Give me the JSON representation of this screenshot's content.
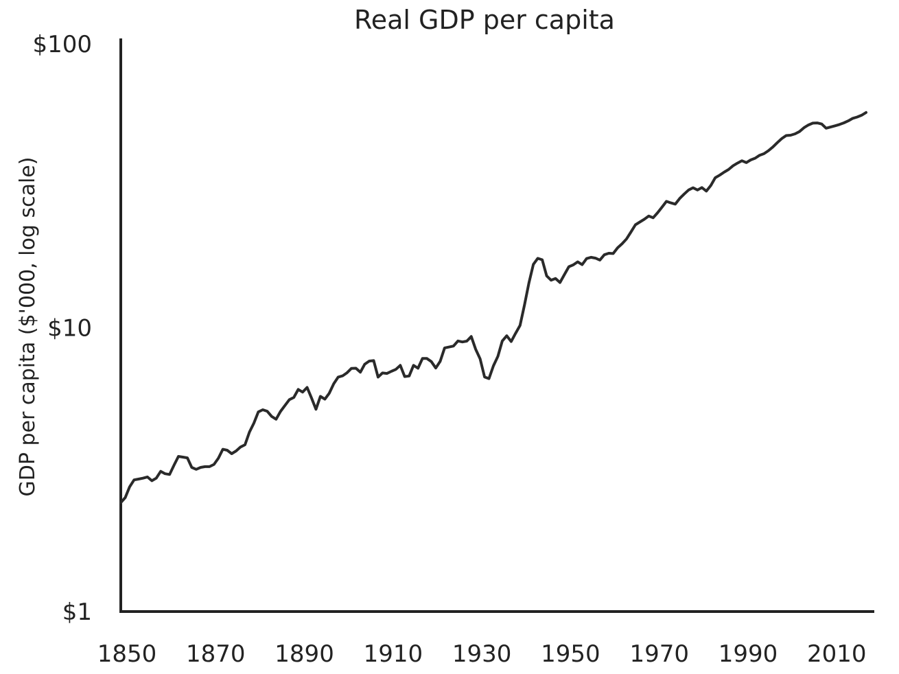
{
  "chart_data": {
    "type": "line",
    "title": "Real GDP per capita",
    "xlabel": "",
    "ylabel": "GDP per capita ($'000, log scale)",
    "y_scale": "log",
    "ylim": [
      1,
      100
    ],
    "xlim": [
      1850,
      2018
    ],
    "x_ticks": [
      "1850",
      "1870",
      "1890",
      "1910",
      "1930",
      "1950",
      "1970",
      "2010"
    ],
    "x_ticks_all": [
      "1850",
      "1870",
      "1890",
      "1910",
      "1930",
      "1950",
      "1970",
      "1990",
      "2010"
    ],
    "y_ticks": [
      "$1",
      "$10",
      "$100"
    ],
    "grid": false,
    "legend": "none",
    "line_color": "#2a2a2a",
    "series": [
      {
        "x": [
          1850,
          1851,
          1852,
          1853,
          1854,
          1855,
          1856,
          1857,
          1858,
          1859,
          1860,
          1861,
          1862,
          1863,
          1864,
          1865,
          1866,
          1867,
          1868,
          1869,
          1870,
          1871,
          1872,
          1873,
          1874,
          1875,
          1876,
          1877,
          1878,
          1879,
          1880,
          1881,
          1882,
          1883,
          1884,
          1885,
          1886,
          1887,
          1888,
          1889,
          1890,
          1891,
          1892,
          1893,
          1894,
          1895,
          1896,
          1897,
          1898,
          1899,
          1900,
          1901,
          1902,
          1903,
          1904,
          1905,
          1906,
          1907,
          1908,
          1909,
          1910,
          1911,
          1912,
          1913,
          1914,
          1915,
          1916,
          1917,
          1918,
          1919,
          1920,
          1921,
          1922,
          1923,
          1924,
          1925,
          1926,
          1927,
          1928,
          1929,
          1930,
          1931,
          1932,
          1933,
          1934,
          1935,
          1936,
          1937,
          1938,
          1939,
          1940,
          1941,
          1942,
          1943,
          1944,
          1945,
          1946,
          1947,
          1948,
          1949,
          1950,
          1951,
          1952,
          1953,
          1954,
          1955,
          1956,
          1957,
          1958,
          1959,
          1960,
          1961,
          1962,
          1963,
          1964,
          1965,
          1966,
          1967,
          1968,
          1969,
          1970,
          1971,
          1972,
          1973,
          1974,
          1975,
          1976,
          1977,
          1978,
          1979,
          1980,
          1981,
          1982,
          1983,
          1984,
          1985,
          1986,
          1987,
          1988,
          1989,
          1990,
          1991,
          1992,
          1993,
          1994,
          1995,
          1996,
          1997,
          1998,
          1999,
          2000,
          2001,
          2002,
          2003,
          2004,
          2005,
          2006,
          2007,
          2008,
          2009,
          2010,
          2011,
          2012,
          2013,
          2014,
          2015,
          2016,
          2017,
          2018
        ],
        "values": [
          2.42,
          2.52,
          2.75,
          2.91,
          2.93,
          2.95,
          2.98,
          2.89,
          2.95,
          3.12,
          3.06,
          3.04,
          3.28,
          3.52,
          3.5,
          3.48,
          3.22,
          3.17,
          3.22,
          3.24,
          3.24,
          3.3,
          3.47,
          3.73,
          3.7,
          3.6,
          3.68,
          3.8,
          3.87,
          4.29,
          4.61,
          5.05,
          5.14,
          5.08,
          4.87,
          4.76,
          5.07,
          5.32,
          5.58,
          5.68,
          6.06,
          5.93,
          6.16,
          5.65,
          5.16,
          5.73,
          5.6,
          5.88,
          6.35,
          6.7,
          6.77,
          6.94,
          7.19,
          7.2,
          6.97,
          7.44,
          7.63,
          7.66,
          6.7,
          6.93,
          6.9,
          7.02,
          7.13,
          7.37,
          6.73,
          6.76,
          7.37,
          7.2,
          7.79,
          7.79,
          7.6,
          7.21,
          7.61,
          8.49,
          8.55,
          8.62,
          8.98,
          8.91,
          8.97,
          9.31,
          8.4,
          7.77,
          6.71,
          6.62,
          7.34,
          7.93,
          8.98,
          9.37,
          8.94,
          9.56,
          10.19,
          12.04,
          14.37,
          16.72,
          17.56,
          17.35,
          15.23,
          14.71,
          14.91,
          14.43,
          15.39,
          16.41,
          16.65,
          17.07,
          16.68,
          17.53,
          17.71,
          17.59,
          17.32,
          18.07,
          18.3,
          18.26,
          19.13,
          19.77,
          20.54,
          21.74,
          23.05,
          23.57,
          24.11,
          24.75,
          24.4,
          25.42,
          26.59,
          27.88,
          27.54,
          27.26,
          28.55,
          29.59,
          30.57,
          31.13,
          30.58,
          31.17,
          30.3,
          31.72,
          33.77,
          34.49,
          35.31,
          36.09,
          37.19,
          38.02,
          38.77,
          38.19,
          39.02,
          39.57,
          40.52,
          41.05,
          42.06,
          43.36,
          44.9,
          46.39,
          47.55,
          47.69,
          48.22,
          49.12,
          50.66,
          51.81,
          52.6,
          52.69,
          52.21,
          50.47,
          50.95,
          51.47,
          52.02,
          52.7,
          53.58,
          54.69,
          55.25,
          56.07,
          57.34
        ]
      }
    ]
  }
}
